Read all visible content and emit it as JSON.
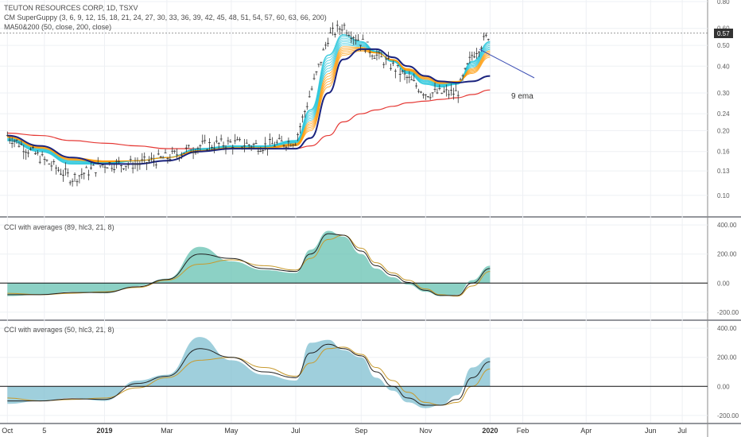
{
  "header": {
    "title": "TEUTON RESOURCES CORP, 1D, TSXV",
    "indicator_1": "CM SuperGuppy (3, 6, 9, 12, 15, 18, 21, 24, 27, 30, 33, 36, 39, 42, 45, 48, 51, 54, 57, 60, 63, 66, 200)",
    "indicator_2": "MA50&200 (50, close, 200, close)"
  },
  "panels": {
    "cci_1_label": "CCI with averages (89, hlc3, 21, 8)",
    "cci_2_label": "CCI with averages (50, hlc3, 21, 8)"
  },
  "annotation": {
    "text": "9 ema"
  },
  "colors": {
    "ma50": "#1a237e",
    "ma200": "#e53935",
    "guppy_fast": "#26c6da",
    "guppy_slow": "#ff9800",
    "candles": "#333333",
    "cci1_fill": "#66c2b2",
    "cci2_fill": "#7fbfd0",
    "cci_line": "#222222",
    "cci_avg": "#c79a2e",
    "trendline": "#3f51b5"
  },
  "chart_data": [
    {
      "type": "line",
      "title": "TEUTON RESOURCES CORP, 1D, TSXV",
      "scale": "log",
      "ylim": [
        0.08,
        0.8
      ],
      "y_ticks": [
        "0.80",
        "0.60",
        "0.50",
        "0.40",
        "0.30",
        "0.24",
        "0.20",
        "0.16",
        "0.13",
        "0.10"
      ],
      "last_price": "0.57",
      "x_ticks": [
        "Oct",
        "5",
        "2019",
        "Mar",
        "May",
        "Jul",
        "Sep",
        "Nov",
        "2020",
        "Feb",
        "Apr",
        "Jun",
        "Jul"
      ],
      "x": [
        "2018-10-01",
        "2018-11-01",
        "2018-12-01",
        "2019-01-01",
        "2019-02-01",
        "2019-03-01",
        "2019-04-01",
        "2019-05-01",
        "2019-06-01",
        "2019-07-01",
        "2019-07-15",
        "2019-08-01",
        "2019-08-15",
        "2019-09-01",
        "2019-09-15",
        "2019-10-01",
        "2019-10-15",
        "2019-11-01",
        "2019-11-15",
        "2019-12-01",
        "2019-12-15",
        "2020-01-01"
      ],
      "series": [
        {
          "role": "price",
          "values": [
            0.19,
            0.15,
            0.12,
            0.14,
            0.14,
            0.15,
            0.17,
            0.175,
            0.17,
            0.18,
            0.3,
            0.55,
            0.62,
            0.52,
            0.45,
            0.4,
            0.35,
            0.3,
            0.3,
            0.3,
            0.45,
            0.57
          ]
        },
        {
          "role": "guppy-fast",
          "values": [
            0.18,
            0.16,
            0.14,
            0.14,
            0.145,
            0.15,
            0.165,
            0.17,
            0.17,
            0.18,
            0.25,
            0.45,
            0.56,
            0.52,
            0.47,
            0.42,
            0.37,
            0.33,
            0.32,
            0.33,
            0.42,
            0.52
          ]
        },
        {
          "role": "guppy-slow",
          "values": [
            0.19,
            0.17,
            0.15,
            0.145,
            0.145,
            0.15,
            0.16,
            0.165,
            0.165,
            0.17,
            0.2,
            0.32,
            0.45,
            0.47,
            0.46,
            0.43,
            0.39,
            0.36,
            0.34,
            0.34,
            0.37,
            0.44
          ]
        },
        {
          "role": "ma50",
          "values": [
            0.19,
            0.17,
            0.15,
            0.14,
            0.14,
            0.145,
            0.16,
            0.165,
            0.165,
            0.165,
            0.185,
            0.3,
            0.43,
            0.48,
            0.48,
            0.44,
            0.4,
            0.36,
            0.34,
            0.335,
            0.34,
            0.36
          ]
        },
        {
          "role": "ma200",
          "values": [
            0.195,
            0.19,
            0.18,
            0.175,
            0.17,
            0.165,
            0.165,
            0.165,
            0.165,
            0.165,
            0.17,
            0.19,
            0.22,
            0.24,
            0.25,
            0.26,
            0.27,
            0.275,
            0.28,
            0.285,
            0.295,
            0.31
          ]
        }
      ]
    },
    {
      "type": "area",
      "title": "CCI with averages (89, hlc3, 21, 8)",
      "ylim": [
        -250,
        450
      ],
      "y_ticks": [
        "400.00",
        "200.00",
        "0.00",
        "-200.00"
      ],
      "x": [
        "2018-10-01",
        "2018-11-01",
        "2018-12-01",
        "2019-01-01",
        "2019-02-01",
        "2019-03-01",
        "2019-04-01",
        "2019-05-01",
        "2019-06-01",
        "2019-07-01",
        "2019-07-15",
        "2019-08-01",
        "2019-08-15",
        "2019-09-01",
        "2019-09-15",
        "2019-10-01",
        "2019-10-15",
        "2019-11-01",
        "2019-11-15",
        "2019-12-01",
        "2019-12-15",
        "2020-01-01"
      ],
      "series": [
        {
          "role": "cci",
          "values": [
            -90,
            -80,
            -60,
            -70,
            -20,
            30,
            250,
            150,
            90,
            70,
            230,
            360,
            320,
            200,
            100,
            40,
            -10,
            -60,
            -90,
            -80,
            20,
            120
          ]
        },
        {
          "role": "avg-21",
          "values": [
            -70,
            -80,
            -70,
            -60,
            -30,
            20,
            130,
            160,
            120,
            90,
            170,
            300,
            330,
            240,
            140,
            70,
            20,
            -40,
            -80,
            -90,
            -20,
            80
          ]
        },
        {
          "role": "avg-8",
          "values": [
            -80,
            -80,
            -65,
            -65,
            -25,
            25,
            200,
            170,
            100,
            80,
            200,
            340,
            330,
            220,
            120,
            55,
            5,
            -50,
            -85,
            -85,
            0,
            100
          ]
        }
      ]
    },
    {
      "type": "area",
      "title": "CCI with averages (50, hlc3, 21, 8)",
      "ylim": [
        -250,
        450
      ],
      "y_ticks": [
        "400.00",
        "200.00",
        "0.00",
        "-200.00"
      ],
      "x": [
        "2018-10-01",
        "2018-11-01",
        "2018-12-01",
        "2019-01-01",
        "2019-02-01",
        "2019-03-01",
        "2019-04-01",
        "2019-05-01",
        "2019-06-01",
        "2019-07-01",
        "2019-07-15",
        "2019-08-01",
        "2019-08-15",
        "2019-09-01",
        "2019-09-15",
        "2019-10-01",
        "2019-10-15",
        "2019-11-01",
        "2019-11-15",
        "2019-12-01",
        "2019-12-15",
        "2020-01-01"
      ],
      "series": [
        {
          "role": "cci",
          "values": [
            -120,
            -100,
            -80,
            -100,
            40,
            80,
            340,
            180,
            80,
            40,
            300,
            320,
            250,
            200,
            60,
            -30,
            -110,
            -150,
            -130,
            -60,
            130,
            200
          ]
        },
        {
          "role": "avg-21",
          "values": [
            -80,
            -100,
            -90,
            -80,
            -10,
            60,
            180,
            200,
            130,
            70,
            160,
            260,
            270,
            220,
            130,
            40,
            -40,
            -110,
            -130,
            -110,
            0,
            120
          ]
        },
        {
          "role": "avg-8",
          "values": [
            -100,
            -100,
            -85,
            -90,
            20,
            70,
            260,
            200,
            100,
            60,
            230,
            290,
            260,
            210,
            100,
            0,
            -80,
            -130,
            -130,
            -90,
            60,
            170
          ]
        }
      ]
    }
  ]
}
